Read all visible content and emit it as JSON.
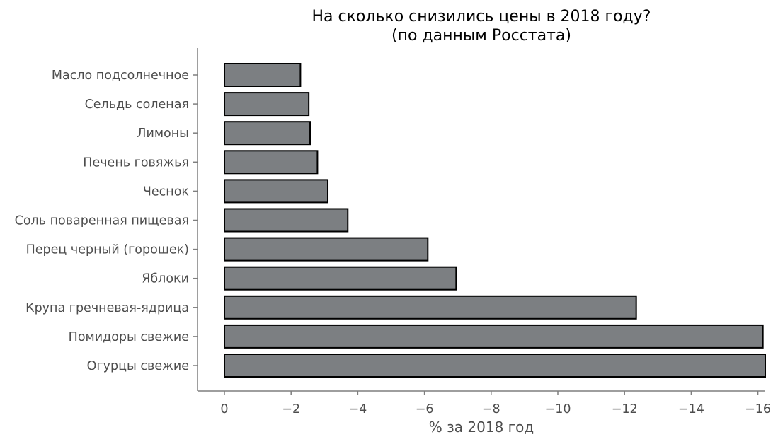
{
  "chart_data": {
    "type": "bar",
    "orientation": "horizontal",
    "title": "На сколько снизились цены в 2018 году?",
    "subtitle": "(по данным Росстата)",
    "xlabel": "% за 2018 год",
    "ylabel": "",
    "categories": [
      "Масло подсолнечное",
      "Сельдь соленая",
      "Лимоны",
      "Печень говяжья",
      "Чеснок",
      "Соль поваренная пищевая",
      "Перец черный (горошек)",
      "Яблоки",
      "Крупа гречневая-ядрица",
      "Помидоры свежие",
      "Огурцы свежие"
    ],
    "values": [
      -2.28,
      -2.53,
      -2.57,
      -2.79,
      -3.1,
      -3.7,
      -6.1,
      -6.95,
      -12.35,
      -16.15,
      -16.3
    ],
    "xlim": [
      0.8,
      -16.3
    ],
    "x_ticks": [
      0,
      -2,
      -4,
      -6,
      -8,
      -10,
      -12,
      -14,
      -16
    ],
    "x_tick_labels": [
      "0",
      "−2",
      "−4",
      "−6",
      "−8",
      "−10",
      "−12",
      "−14",
      "−16"
    ],
    "axis_direction": "inverted",
    "grid": false,
    "legend": "none",
    "bar_color": "#7c7f82",
    "bar_edge_color": "#000000"
  }
}
